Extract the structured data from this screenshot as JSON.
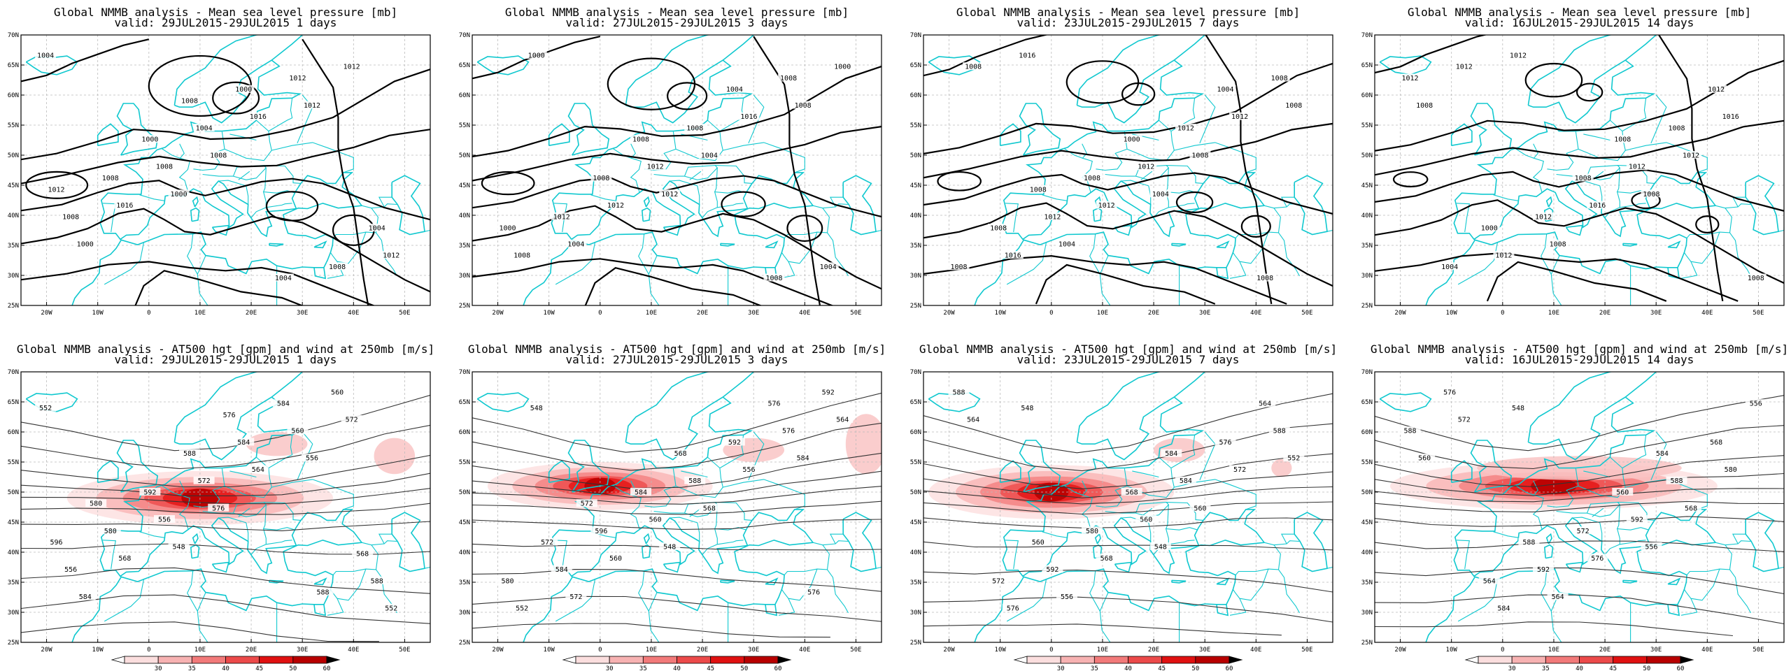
{
  "panels": [
    {
      "title": "Global NMMB analysis - Mean sea level pressure [mb]",
      "valid": "valid: 29JUL2015-29JUL2015   1 days",
      "kind": "mslp",
      "labels": [
        "1004",
        "1000",
        "1012",
        "1000",
        "1008",
        "1012",
        "1016",
        "1016",
        "1012",
        "1008",
        "1012",
        "1008",
        "1004",
        "1008",
        "1008",
        "1000",
        "1004",
        "1000",
        "1004",
        "1012",
        "1008"
      ]
    },
    {
      "title": "Global NMMB analysis - Mean sea level pressure [mb]",
      "valid": "valid: 27JUL2015-29JUL2015   3 days",
      "kind": "mslp",
      "labels": [
        "1000",
        "1012",
        "1008",
        "1004",
        "1004",
        "1000",
        "1012",
        "1016",
        "1008",
        "1012",
        "1008",
        "1012",
        "1008",
        "1004",
        "1008",
        "1004",
        "1000",
        "1008",
        "1008"
      ]
    },
    {
      "title": "Global NMMB analysis - Mean sea level pressure [mb]",
      "valid": "valid: 23JUL2015-29JUL2015   7 days",
      "kind": "mslp",
      "labels": [
        "1016",
        "1004",
        "1008",
        "1004",
        "1008",
        "1008",
        "1012",
        "1012",
        "1016",
        "1012",
        "1008",
        "1012",
        "1012",
        "1008",
        "1008",
        "1004",
        "1008",
        "1000",
        "1008",
        "1008"
      ]
    },
    {
      "title": "Global NMMB analysis - Mean sea level pressure [mb]",
      "valid": "valid: 16JUL2015-29JUL2015   14 days",
      "kind": "mslp",
      "labels": [
        "1012",
        "1008",
        "1008",
        "1008",
        "1012",
        "1012",
        "1016",
        "1016",
        "1012",
        "1012",
        "1012",
        "1012",
        "1008",
        "1004",
        "1008",
        "1012",
        "1000",
        "1008",
        "1008"
      ]
    },
    {
      "title": "Global NMMB analysis - AT500 hgt [gpm] and wind at 250mb [m/s]",
      "valid": "valid: 29JUL2015-29JUL2015   1 days",
      "kind": "h500",
      "labels": [
        "552",
        "548",
        "556",
        "584",
        "576",
        "572",
        "568",
        "564",
        "552",
        "556",
        "560",
        "556",
        "572",
        "560",
        "580",
        "584",
        "588",
        "592",
        "584",
        "596",
        "588",
        "588",
        "580",
        "576",
        "568"
      ]
    },
    {
      "title": "Global NMMB analysis - AT500 hgt [gpm] and wind at 250mb [m/s]",
      "valid": "valid: 27JUL2015-29JUL2015   3 days",
      "kind": "h500",
      "labels": [
        "548",
        "548",
        "584",
        "572",
        "568",
        "564",
        "560",
        "556",
        "552",
        "560",
        "576",
        "584",
        "588",
        "592",
        "596",
        "592",
        "580",
        "584",
        "576",
        "572",
        "568",
        "576",
        "572"
      ]
    },
    {
      "title": "Global NMMB analysis - AT500 hgt [gpm] and wind at 250mb [m/s]",
      "valid": "valid: 23JUL2015-29JUL2015   7 days",
      "kind": "h500",
      "labels": [
        "548",
        "548",
        "552",
        "556",
        "560",
        "564",
        "568",
        "572",
        "576",
        "560",
        "588",
        "592",
        "584",
        "588",
        "580",
        "576",
        "572",
        "568",
        "564",
        "560",
        "584"
      ]
    },
    {
      "title": "Global NMMB analysis - AT500 hgt [gpm] and wind at 250mb [m/s]",
      "valid": "valid: 16JUL2015-29JUL2015   14 days",
      "kind": "h500",
      "labels": [
        "548",
        "556",
        "560",
        "564",
        "568",
        "572",
        "576",
        "580",
        "584",
        "592",
        "588",
        "592",
        "588",
        "576",
        "572",
        "568",
        "564",
        "560",
        "556",
        "588",
        "584"
      ]
    }
  ],
  "axes": {
    "lat_ticks": [
      "70N",
      "65N",
      "60N",
      "55N",
      "50N",
      "45N",
      "40N",
      "35N",
      "30N",
      "25N"
    ],
    "lon_ticks": [
      "20W",
      "10W",
      "0",
      "10E",
      "20E",
      "30E",
      "40E",
      "50E"
    ]
  },
  "colorbar": {
    "ticks": [
      "30",
      "35",
      "40",
      "45",
      "50",
      "60"
    ],
    "colors": [
      "#ffffff",
      "#fbdede",
      "#f7b2b2",
      "#f27a7a",
      "#ec4a4a",
      "#e01010",
      "#b80000",
      "#000000"
    ]
  },
  "style": {
    "coast_color": "#10c8cf",
    "contour_color": "#000000",
    "grid_color": "#bbbbbb"
  }
}
